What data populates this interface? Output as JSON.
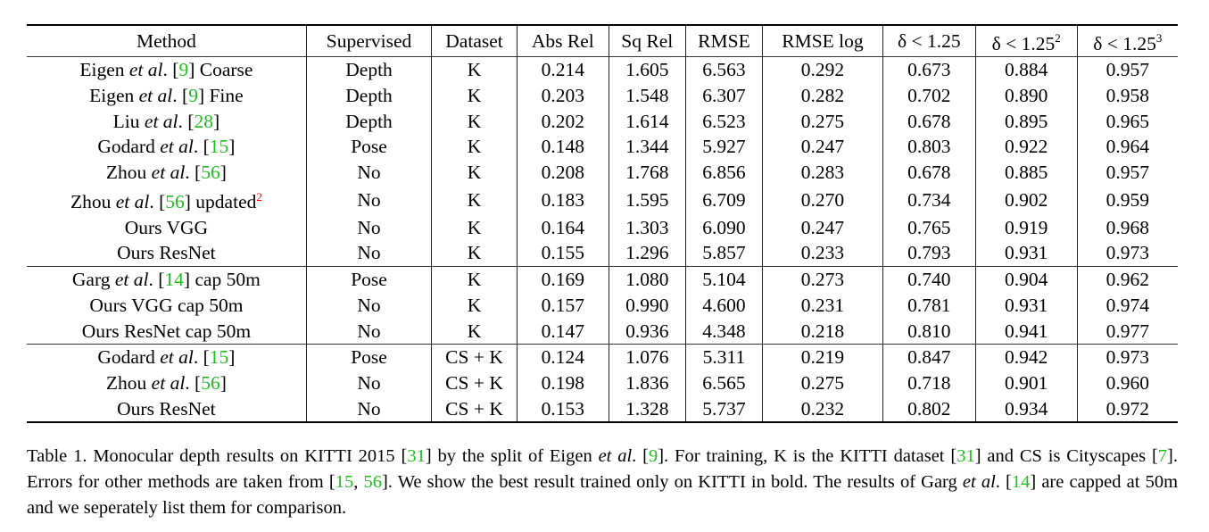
{
  "table": {
    "headers": [
      "Method",
      "Supervised",
      "Dataset",
      "Abs Rel",
      "Sq Rel",
      "RMSE",
      "RMSE log",
      "δ < 1.25",
      "δ < 1.25",
      "δ < 1.25"
    ],
    "header_superscripts": {
      "8": "2",
      "9": "3"
    },
    "rows": [
      {
        "method": {
          "pre": "Eigen ",
          "etal": "et al",
          "dot": ". [",
          "ref": "9",
          "post": "] Coarse"
        },
        "supervised": "Depth",
        "dataset": "K",
        "values": [
          "0.214",
          "1.605",
          "6.563",
          "0.292",
          "0.673",
          "0.884",
          "0.957"
        ],
        "bold": []
      },
      {
        "method": {
          "pre": "Eigen ",
          "etal": "et al",
          "dot": ". [",
          "ref": "9",
          "post": "] Fine"
        },
        "supervised": "Depth",
        "dataset": "K",
        "values": [
          "0.203",
          "1.548",
          "6.307",
          "0.282",
          "0.702",
          "0.890",
          "0.958"
        ],
        "bold": []
      },
      {
        "method": {
          "pre": "Liu ",
          "etal": "et al",
          "dot": ". [",
          "ref": "28",
          "post": "]"
        },
        "supervised": "Depth",
        "dataset": "K",
        "values": [
          "0.202",
          "1.614",
          "6.523",
          "0.275",
          "0.678",
          "0.895",
          "0.965"
        ],
        "bold": []
      },
      {
        "method": {
          "pre": "Godard ",
          "etal": "et al",
          "dot": ". [",
          "ref": "15",
          "post": "]"
        },
        "supervised": "Pose",
        "dataset": "K",
        "values": [
          "0.148",
          "1.344",
          "5.927",
          "0.247",
          "0.803",
          "0.922",
          "0.964"
        ],
        "bold": [
          0,
          4
        ]
      },
      {
        "method": {
          "pre": "Zhou ",
          "etal": "et al",
          "dot": ". [",
          "ref": "56",
          "post": "]"
        },
        "supervised": "No",
        "dataset": "K",
        "values": [
          "0.208",
          "1.768",
          "6.856",
          "0.283",
          "0.678",
          "0.885",
          "0.957"
        ],
        "bold": []
      },
      {
        "method": {
          "pre": "Zhou ",
          "etal": "et al",
          "dot": ". [",
          "ref": "56",
          "post": "] updated",
          "sup": "2"
        },
        "supervised": "No",
        "dataset": "K",
        "values": [
          "0.183",
          "1.595",
          "6.709",
          "0.270",
          "0.734",
          "0.902",
          "0.959"
        ],
        "bold": []
      },
      {
        "method": {
          "pre": "Ours VGG"
        },
        "supervised": "No",
        "dataset": "K",
        "values": [
          "0.164",
          "1.303",
          "6.090",
          "0.247",
          "0.765",
          "0.919",
          "0.968"
        ],
        "bold": []
      },
      {
        "method": {
          "pre": "Ours ResNet"
        },
        "supervised": "No",
        "dataset": "K",
        "values": [
          "0.155",
          "1.296",
          "5.857",
          "0.233",
          "0.793",
          "0.931",
          "0.973"
        ],
        "bold": [
          1,
          2,
          3,
          5,
          6
        ]
      },
      {
        "sep": true,
        "method": {
          "pre": "Garg ",
          "etal": "et al",
          "dot": ". [",
          "ref": "14",
          "post": "] cap 50m"
        },
        "supervised": "Pose",
        "dataset": "K",
        "values": [
          "0.169",
          "1.080",
          "5.104",
          "0.273",
          "0.740",
          "0.904",
          "0.962"
        ],
        "bold": []
      },
      {
        "method": {
          "pre": "Ours VGG cap 50m"
        },
        "supervised": "No",
        "dataset": "K",
        "values": [
          "0.157",
          "0.990",
          "4.600",
          "0.231",
          "0.781",
          "0.931",
          "0.974"
        ],
        "bold": []
      },
      {
        "method": {
          "pre": "Ours ResNet cap 50m"
        },
        "supervised": "No",
        "dataset": "K",
        "values": [
          "0.147",
          "0.936",
          "4.348",
          "0.218",
          "0.810",
          "0.941",
          "0.977"
        ],
        "bold": [
          0,
          1,
          2,
          3,
          4,
          5,
          6
        ]
      },
      {
        "sep": true,
        "method": {
          "pre": "Godard ",
          "etal": "et al",
          "dot": ". [",
          "ref": "15",
          "post": "]"
        },
        "supervised": "Pose",
        "dataset": "CS + K",
        "values": [
          "0.124",
          "1.076",
          "5.311",
          "0.219",
          "0.847",
          "0.942",
          "0.973"
        ],
        "bold": [
          0,
          1,
          2,
          3,
          4,
          5,
          6
        ]
      },
      {
        "method": {
          "pre": "Zhou ",
          "etal": "et al",
          "dot": ". [",
          "ref": "56",
          "post": "]"
        },
        "supervised": "No",
        "dataset": "CS + K",
        "values": [
          "0.198",
          "1.836",
          "6.565",
          "0.275",
          "0.718",
          "0.901",
          "0.960"
        ],
        "bold": []
      },
      {
        "method": {
          "pre": "Ours ResNet"
        },
        "supervised": "No",
        "dataset": "CS + K",
        "values": [
          "0.153",
          "1.328",
          "5.737",
          "0.232",
          "0.802",
          "0.934",
          "0.972"
        ],
        "bold": []
      }
    ]
  },
  "caption": [
    {
      "t": "Table 1. Monocular depth results on KITTI 2015 ["
    },
    {
      "t": "31",
      "ref": true
    },
    {
      "t": "] by the split of Eigen "
    },
    {
      "t": "et al",
      "i": true
    },
    {
      "t": ". ["
    },
    {
      "t": "9",
      "ref": true
    },
    {
      "t": "]. For training, K is the KITTI dataset ["
    },
    {
      "t": "31",
      "ref": true
    },
    {
      "t": "] and CS is Cityscapes ["
    },
    {
      "t": "7",
      "ref": true
    },
    {
      "t": "]. Errors for other methods are taken from ["
    },
    {
      "t": "15",
      "ref": true
    },
    {
      "t": ", "
    },
    {
      "t": "56",
      "ref": true
    },
    {
      "t": "]. We show the best result trained only on KITTI in bold. The results of Garg "
    },
    {
      "t": "et al",
      "i": true
    },
    {
      "t": ". ["
    },
    {
      "t": "14",
      "ref": true
    },
    {
      "t": "] are capped at 50m and we seperately list them for comparison."
    }
  ],
  "colors": {
    "reference": "#1fbf1f",
    "footnote": "#e00000"
  }
}
